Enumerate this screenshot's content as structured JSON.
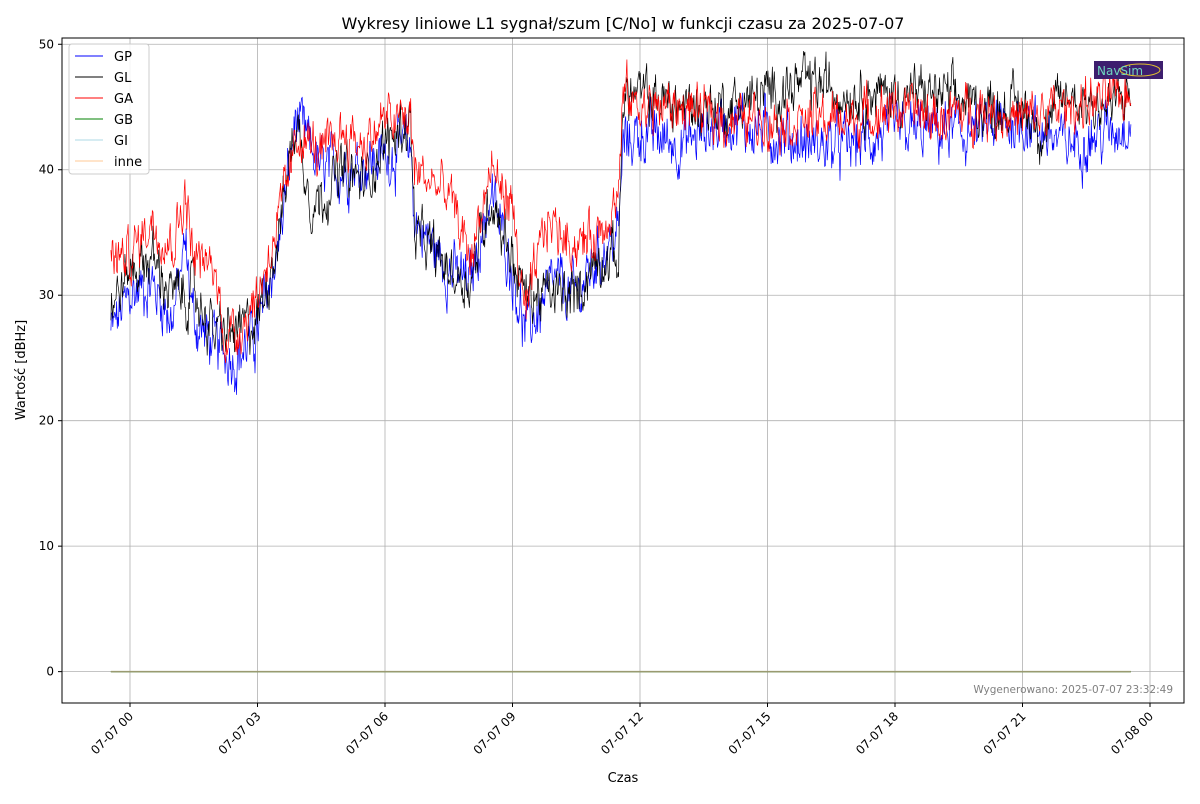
{
  "chart_data": {
    "type": "line",
    "title": "Wykresy liniowe L1 sygnał/szum [C/No] w funkcji czasu za 2025-07-07",
    "xlabel": "Czas",
    "ylabel": "Wartość [dBHz]",
    "x_unit": "hours since 2025-07-07 00:00",
    "xlim": [
      -1.6,
      24.8
    ],
    "ylim": [
      -2.5,
      50.5
    ],
    "yticks": [
      0,
      10,
      20,
      30,
      40,
      50
    ],
    "xticks": [
      0,
      3,
      6,
      9,
      12,
      15,
      18,
      21,
      24
    ],
    "xtick_labels": [
      "07-07 00",
      "07-07 03",
      "07-07 06",
      "07-07 09",
      "07-07 12",
      "07-07 15",
      "07-07 18",
      "07-07 21",
      "07-08 00"
    ],
    "grid": true,
    "legend_position": "top-left",
    "series": [
      {
        "name": "GP",
        "color": "#0000ff",
        "noise": 1.6,
        "points": [
          [
            -0.45,
            27
          ],
          [
            0,
            30
          ],
          [
            0.5,
            31
          ],
          [
            1,
            28
          ],
          [
            1.3,
            34
          ],
          [
            1.5,
            28
          ],
          [
            2,
            26
          ],
          [
            2.5,
            25
          ],
          [
            3,
            27
          ],
          [
            3.5,
            34
          ],
          [
            3.9,
            44
          ],
          [
            4.5,
            40
          ],
          [
            5,
            40
          ],
          [
            6,
            41
          ],
          [
            6.6,
            42
          ],
          [
            6.7,
            36
          ],
          [
            7.5,
            32
          ],
          [
            8,
            31
          ],
          [
            8.5,
            38
          ],
          [
            9,
            32
          ],
          [
            9.3,
            27
          ],
          [
            10,
            31
          ],
          [
            10.5,
            30
          ],
          [
            11,
            33
          ],
          [
            11.5,
            35
          ],
          [
            11.6,
            42
          ],
          [
            12,
            43
          ],
          [
            13,
            42
          ],
          [
            14,
            44
          ],
          [
            15,
            43
          ],
          [
            16,
            42
          ],
          [
            17,
            42
          ],
          [
            18,
            43
          ],
          [
            19,
            43
          ],
          [
            20,
            43
          ],
          [
            21,
            44
          ],
          [
            22,
            42
          ],
          [
            23,
            43
          ],
          [
            23.55,
            44
          ]
        ]
      },
      {
        "name": "GL",
        "color": "#000000",
        "noise": 1.5,
        "points": [
          [
            -0.45,
            29
          ],
          [
            0,
            32
          ],
          [
            0.5,
            33
          ],
          [
            1,
            30
          ],
          [
            1.5,
            30
          ],
          [
            2,
            27
          ],
          [
            2.5,
            27
          ],
          [
            3,
            28
          ],
          [
            3.5,
            35
          ],
          [
            3.9,
            44
          ],
          [
            4.3,
            37
          ],
          [
            5,
            40
          ],
          [
            5.5,
            39
          ],
          [
            6,
            42
          ],
          [
            6.6,
            44
          ],
          [
            6.7,
            35
          ],
          [
            7.5,
            32
          ],
          [
            8,
            31
          ],
          [
            8.5,
            38
          ],
          [
            9,
            33
          ],
          [
            9.3,
            30
          ],
          [
            10,
            30
          ],
          [
            10.5,
            30
          ],
          [
            11,
            33
          ],
          [
            11.5,
            33
          ],
          [
            11.6,
            46
          ],
          [
            12,
            46
          ],
          [
            13,
            45
          ],
          [
            14,
            45
          ],
          [
            15,
            46
          ],
          [
            16,
            47
          ],
          [
            17,
            46
          ],
          [
            18,
            46
          ],
          [
            19,
            46
          ],
          [
            20,
            45
          ],
          [
            21,
            45
          ],
          [
            21.5,
            43
          ],
          [
            22,
            46
          ],
          [
            23,
            45
          ],
          [
            23.55,
            46
          ]
        ]
      },
      {
        "name": "GA",
        "color": "#ff0000",
        "noise": 1.4,
        "points": [
          [
            -0.45,
            33
          ],
          [
            0,
            33
          ],
          [
            0.5,
            36
          ],
          [
            1,
            34
          ],
          [
            1.3,
            38
          ],
          [
            1.5,
            33
          ],
          [
            2,
            32
          ],
          [
            2.2,
            27
          ],
          [
            2.5,
            27
          ],
          [
            3,
            30
          ],
          [
            3.5,
            36
          ],
          [
            4,
            43
          ],
          [
            4.5,
            41
          ],
          [
            5,
            43
          ],
          [
            5.5,
            42
          ],
          [
            6,
            44
          ],
          [
            6.6,
            44
          ],
          [
            6.7,
            40
          ],
          [
            7.5,
            38
          ],
          [
            8,
            33
          ],
          [
            8.5,
            40
          ],
          [
            9,
            37
          ],
          [
            9.3,
            28
          ],
          [
            9.8,
            36
          ],
          [
            10.5,
            34
          ],
          [
            11,
            35
          ],
          [
            11.5,
            38
          ],
          [
            11.6,
            46
          ],
          [
            12,
            45
          ],
          [
            13,
            45
          ],
          [
            14,
            44
          ],
          [
            15,
            44
          ],
          [
            16,
            44
          ],
          [
            17,
            44
          ],
          [
            18,
            45
          ],
          [
            19,
            44
          ],
          [
            20,
            45
          ],
          [
            21,
            44
          ],
          [
            22,
            45
          ],
          [
            23.55,
            46
          ]
        ]
      },
      {
        "name": "GB",
        "color": "#008000",
        "noise": 0,
        "points": [
          [
            -0.45,
            0
          ],
          [
            23.55,
            0
          ]
        ]
      },
      {
        "name": "GI",
        "color": "#add8e6",
        "noise": 0,
        "points": [
          [
            -0.45,
            0
          ],
          [
            23.55,
            0
          ]
        ]
      },
      {
        "name": "inne",
        "color": "#ffc896",
        "noise": 0,
        "points": [
          [
            -0.45,
            0
          ],
          [
            23.55,
            0
          ]
        ]
      }
    ]
  },
  "footer": {
    "generated": "Wygenerowano: 2025-07-07 23:32:49"
  },
  "logo": {
    "text": "NavSim"
  }
}
